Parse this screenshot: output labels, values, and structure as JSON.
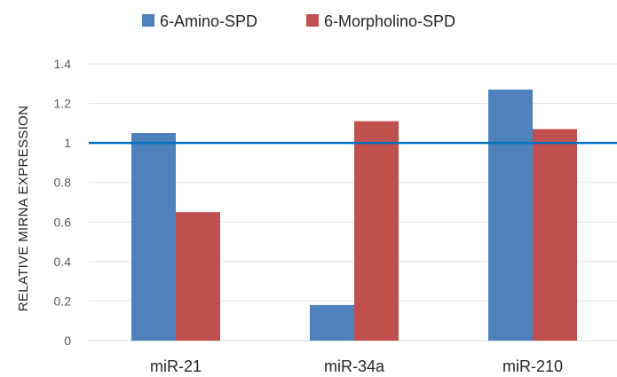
{
  "chart_data": {
    "type": "bar",
    "title": "",
    "xlabel": "",
    "ylabel": "RELATIVE MIRNA EXPRESSION",
    "categories": [
      "miR-21",
      "miR-34a",
      "miR-210"
    ],
    "series": [
      {
        "name": "6-Amino-SPD",
        "color": "#4f81bd",
        "values": [
          1.05,
          0.18,
          1.27
        ]
      },
      {
        "name": "6-Morpholino-SPD",
        "color": "#c0504d",
        "values": [
          0.65,
          1.11,
          1.07
        ]
      }
    ],
    "ylim": [
      0,
      1.4
    ],
    "yticks": [
      "0",
      "0.2",
      "0.4",
      "0.6",
      "0.8",
      "1",
      "1.2",
      "1.4"
    ],
    "reference_line": {
      "value": 1,
      "color": "#0070c0"
    },
    "grid": true,
    "legend_position": "top"
  }
}
